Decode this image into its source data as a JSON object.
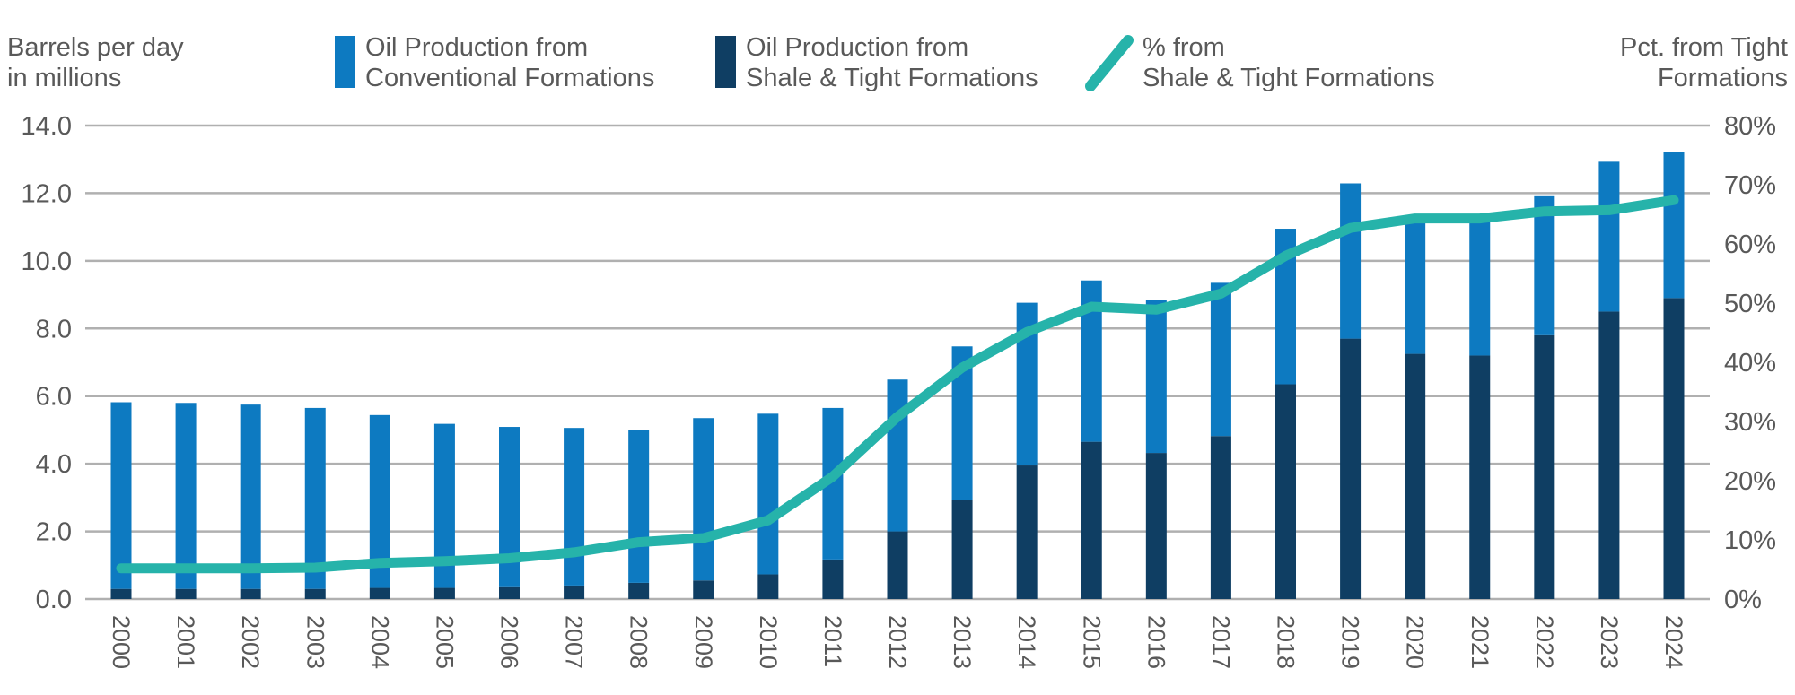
{
  "header": {
    "left_axis_title_line1": "Barrels per day",
    "left_axis_title_line2": "in millions",
    "right_axis_title_line1": "Pct. from Tight",
    "right_axis_title_line2": "Formations"
  },
  "legend": {
    "items": [
      {
        "id": "conventional",
        "label_line1": "Oil Production from",
        "label_line2": "Conventional Formations",
        "mark": "square",
        "color": "#0d7ac1"
      },
      {
        "id": "shale",
        "label_line1": "Oil Production from",
        "label_line2": "Shale & Tight Formations",
        "mark": "square",
        "color": "#0f3e63"
      },
      {
        "id": "pct",
        "label_line1": "% from",
        "label_line2": "Shale & Tight Formations",
        "mark": "line",
        "color": "#26b3aa"
      }
    ]
  },
  "colors": {
    "conventional_bar": "#0d7ac1",
    "shale_bar": "#0f3e63",
    "pct_line": "#26b3aa",
    "gridline": "#b0b0b0",
    "axis_text": "#595959",
    "background": "#ffffff"
  },
  "chart_data": {
    "type": "bar",
    "subtype": "stacked-bar-with-line",
    "title": "",
    "xlabel": "",
    "ylabel_left": "Barrels per day in millions",
    "ylabel_right": "Pct. from Tight Formations",
    "categories": [
      "2000",
      "2001",
      "2002",
      "2003",
      "2004",
      "2005",
      "2006",
      "2007",
      "2008",
      "2009",
      "2010",
      "2011",
      "2012",
      "2013",
      "2014",
      "2015",
      "2016",
      "2017",
      "2018",
      "2019",
      "2020",
      "2021",
      "2022",
      "2023",
      "2024"
    ],
    "series": [
      {
        "name": "Oil Production from Shale & Tight Formations",
        "stack_order": 0,
        "color": "#0f3e63",
        "values": [
          0.3,
          0.3,
          0.3,
          0.3,
          0.33,
          0.33,
          0.35,
          0.4,
          0.48,
          0.55,
          0.73,
          1.17,
          2.0,
          2.92,
          3.95,
          4.65,
          4.32,
          4.82,
          6.35,
          7.7,
          7.25,
          7.2,
          7.8,
          8.5,
          8.9
        ]
      },
      {
        "name": "Oil Production from Conventional Formations",
        "stack_order": 1,
        "color": "#0d7ac1",
        "values": [
          5.52,
          5.5,
          5.45,
          5.35,
          5.11,
          4.85,
          4.74,
          4.66,
          4.52,
          4.8,
          4.75,
          4.48,
          4.49,
          4.55,
          4.81,
          4.77,
          4.52,
          4.53,
          4.6,
          4.59,
          4.03,
          3.99,
          4.11,
          4.43,
          4.31
        ]
      }
    ],
    "line_series": {
      "name": "% from Shale & Tight Formations",
      "color": "#26b3aa",
      "axis": "right",
      "values": [
        5.2,
        5.2,
        5.2,
        5.3,
        6.1,
        6.4,
        6.9,
        7.9,
        9.6,
        10.3,
        13.3,
        20.7,
        30.8,
        39.1,
        45.1,
        49.4,
        48.9,
        51.6,
        58.0,
        62.7,
        64.3,
        64.3,
        65.5,
        65.7,
        67.4
      ]
    },
    "y_left": {
      "min": 0,
      "max": 14,
      "tick_step": 2,
      "tick_labels": [
        "0.0",
        "2.0",
        "4.0",
        "6.0",
        "8.0",
        "10.0",
        "12.0",
        "14.0"
      ]
    },
    "y_right": {
      "min": 0,
      "max": 80,
      "tick_step": 10,
      "tick_labels": [
        "0%",
        "10%",
        "20%",
        "30%",
        "40%",
        "50%",
        "60%",
        "70%",
        "80%"
      ]
    },
    "grid": "horizontal-only",
    "legend_position": "top",
    "x_tick_rotation_deg": 90
  }
}
